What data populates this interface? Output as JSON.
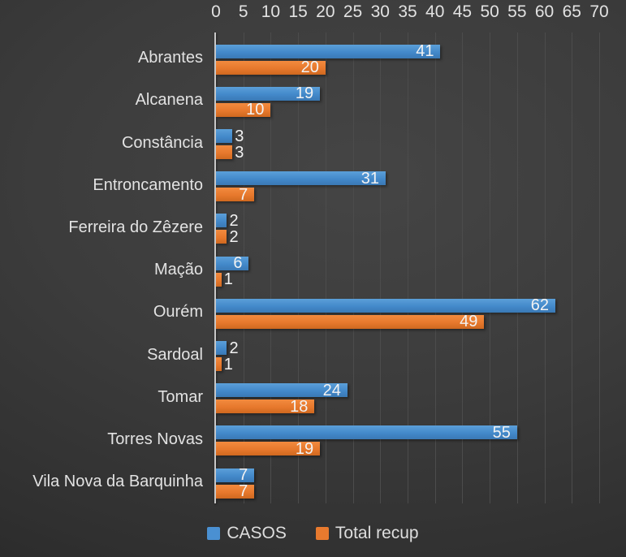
{
  "chart_data": {
    "type": "bar",
    "orientation": "horizontal",
    "title": "",
    "categories": [
      "Abrantes",
      "Alcanena",
      "Constância",
      "Entroncamento",
      "Ferreira do Zêzere",
      "Mação",
      "Ourém",
      "Sardoal",
      "Tomar",
      "Torres Novas",
      "Vila Nova da Barquinha"
    ],
    "series": [
      {
        "name": "CASOS",
        "color": "#4a90d2",
        "values": [
          41,
          19,
          3,
          31,
          2,
          6,
          62,
          2,
          24,
          55,
          7
        ]
      },
      {
        "name": "Total recup",
        "color": "#e87a2e",
        "values": [
          20,
          10,
          3,
          7,
          2,
          1,
          49,
          1,
          18,
          19,
          7
        ]
      }
    ],
    "x_axis": {
      "position": "top",
      "min": 0,
      "max": 70,
      "tick_step": 5,
      "ticks": [
        0,
        5,
        10,
        15,
        20,
        25,
        30,
        35,
        40,
        45,
        50,
        55,
        60,
        65,
        70
      ]
    },
    "legend": {
      "position": "bottom",
      "entries": [
        "CASOS",
        "Total recup"
      ]
    },
    "grid": true,
    "data_labels": true
  },
  "colors": {
    "background": "#383838",
    "gridline": "#4c4c4c",
    "axis_line": "#c8c8c8",
    "axis_text": "#e2e2e2",
    "category_text": "#e2e2e2",
    "value_label": "#f2f2f2",
    "legend_text": "#dedede",
    "series_blue": "#4a90d2",
    "series_orange": "#e87a2e"
  }
}
